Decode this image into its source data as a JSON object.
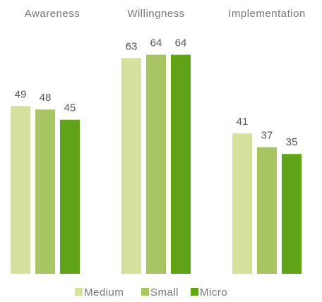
{
  "chart_data": {
    "type": "bar",
    "categories": [
      "Awareness",
      "Willingness",
      "Implementation"
    ],
    "series": [
      {
        "name": "Medium",
        "color": "#d4e09b",
        "values": [
          49,
          63,
          41
        ]
      },
      {
        "name": "Small",
        "color": "#a9c462",
        "values": [
          48,
          64,
          37
        ]
      },
      {
        "name": "Micro",
        "color": "#5fa317",
        "values": [
          45,
          64,
          35
        ]
      }
    ],
    "ylim": [
      0,
      80
    ],
    "legend": "bottom"
  }
}
